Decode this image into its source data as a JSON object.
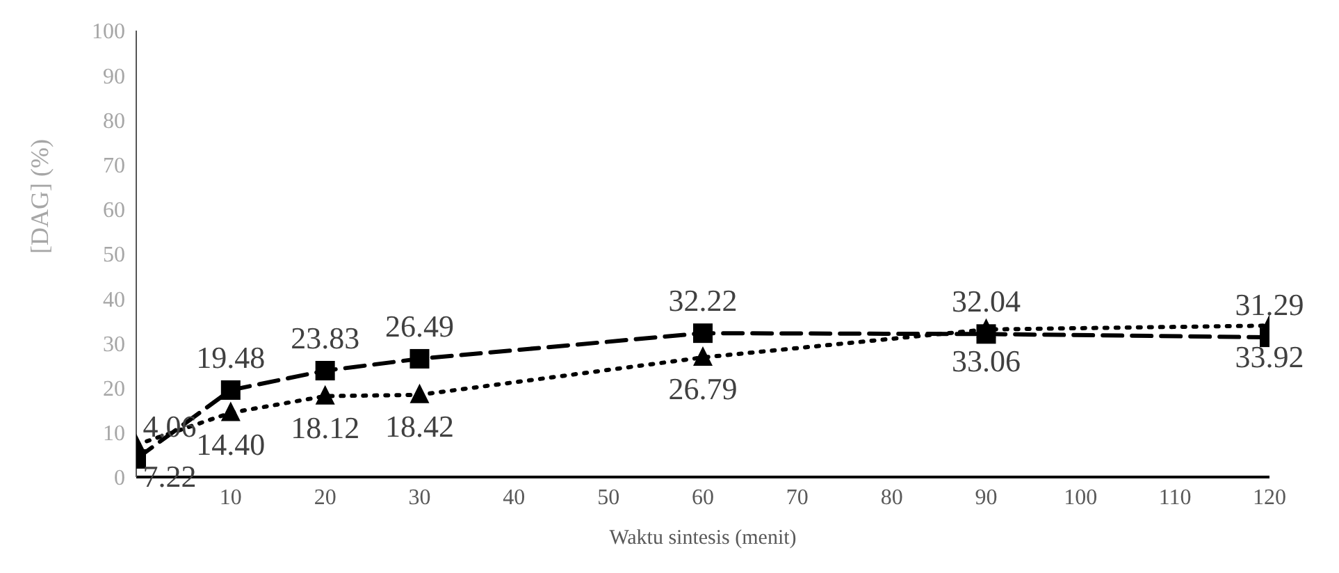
{
  "chart_data": {
    "type": "line",
    "xlabel": "Waktu sintesis (menit)",
    "ylabel": "[DAG] (%)",
    "x": [
      0,
      10,
      20,
      30,
      60,
      90,
      120
    ],
    "series": [
      {
        "color": "#000000",
        "marker": "square",
        "line_style": "dashed",
        "values": [
          4.06,
          19.48,
          23.83,
          26.49,
          32.22,
          32.04,
          31.29
        ],
        "value_labels": [
          "4.06",
          "19.48",
          "23.83",
          "26.49",
          "32.22",
          "32.04",
          "31.29"
        ]
      },
      {
        "color": "#000000",
        "marker": "triangle",
        "line_style": "dotted",
        "values": [
          7.22,
          14.4,
          18.12,
          18.42,
          26.79,
          33.06,
          33.92
        ],
        "value_labels": [
          "7.22",
          "14.40",
          "18.12",
          "18.42",
          "26.79",
          "33.06",
          "33.92"
        ]
      }
    ],
    "xlim": [
      0,
      120
    ],
    "xticks": [
      10,
      20,
      30,
      40,
      50,
      60,
      70,
      80,
      90,
      100,
      110,
      120
    ],
    "ylim": [
      0,
      100
    ],
    "yticks": [
      0,
      10,
      20,
      30,
      40,
      50,
      60,
      70,
      80,
      90,
      100
    ],
    "grid": false,
    "legend": false
  }
}
